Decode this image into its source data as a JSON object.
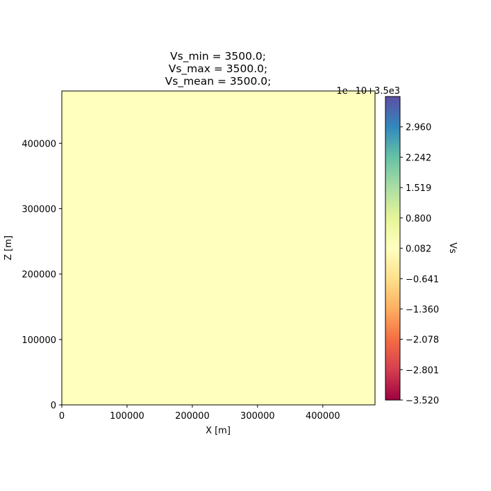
{
  "chart_data": {
    "type": "heatmap",
    "title_lines": [
      "Vs_min = 3500.0;",
      "Vs_max = 3500.0;",
      "Vs_mean = 3500.0;"
    ],
    "xlabel": "X [m]",
    "ylabel": "Z [m]",
    "xlim": [
      0,
      480000
    ],
    "ylim": [
      0,
      480000
    ],
    "xticks": [
      0,
      100000,
      200000,
      300000,
      400000
    ],
    "yticks": [
      0,
      100000,
      200000,
      300000,
      400000
    ],
    "field_value": 3500.0,
    "field_color": "#ffffbe",
    "colorbar": {
      "label": "Vs",
      "offset_text": "1e−10+3.5e3",
      "vmin": -3.52,
      "vmax": 3.68,
      "ticks": [
        "−3.520",
        "−2.801",
        "−2.078",
        "−1.360",
        "−0.641",
        "0.082",
        "0.800",
        "1.519",
        "2.242",
        "2.960"
      ],
      "tick_values": [
        -3.52,
        -2.801,
        -2.078,
        -1.36,
        -0.641,
        0.082,
        0.8,
        1.519,
        2.242,
        2.96
      ],
      "colormap": "Spectral",
      "colormap_stops": [
        "#9e0142",
        "#d53e4f",
        "#f46d43",
        "#fdae61",
        "#fee08b",
        "#ffffbf",
        "#e6f598",
        "#abdda4",
        "#66c2a5",
        "#3288bd",
        "#5e4fa2"
      ]
    },
    "grid": false
  }
}
